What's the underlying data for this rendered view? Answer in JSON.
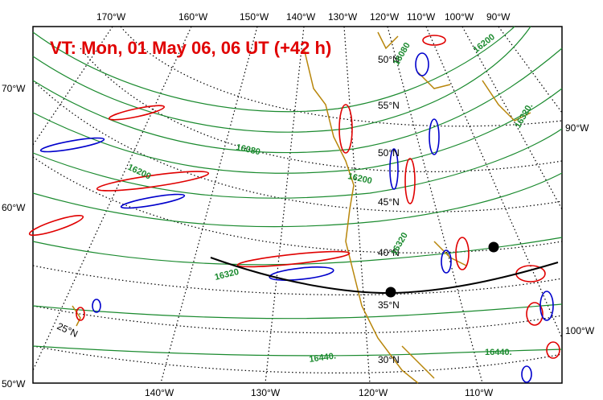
{
  "title": "VT:  Mon, 01 May 06, 06 UT (+42 h)",
  "top_lon_labels": [
    "170°W",
    "160°W",
    "150°W",
    "140°W",
    "130°W",
    "120°W",
    "110°W",
    "100°W",
    "90°W"
  ],
  "bottom_lon_labels": [
    "140°W",
    "130°W",
    "120°W",
    "110°W"
  ],
  "left_lon_labels": [
    "70°W",
    "60°W",
    "50°W"
  ],
  "right_lon_labels": [
    "90°W",
    "100°W"
  ],
  "lat_labels": [
    "50°N",
    "55°N",
    "50°N",
    "45°N",
    "40°N",
    "35°N",
    "30°N",
    "25°N"
  ],
  "contour_labels": [
    "16080",
    "16080",
    "16200",
    "16200",
    "16200",
    "16320.",
    "16320",
    "16320",
    "16440.",
    "16440."
  ],
  "colors": {
    "title": "#e00000",
    "height_contours": "#1a8a2e",
    "coastline": "#b8860b",
    "positive": "#e00000",
    "negative": "#0000cc",
    "section_line": "#000000"
  }
}
